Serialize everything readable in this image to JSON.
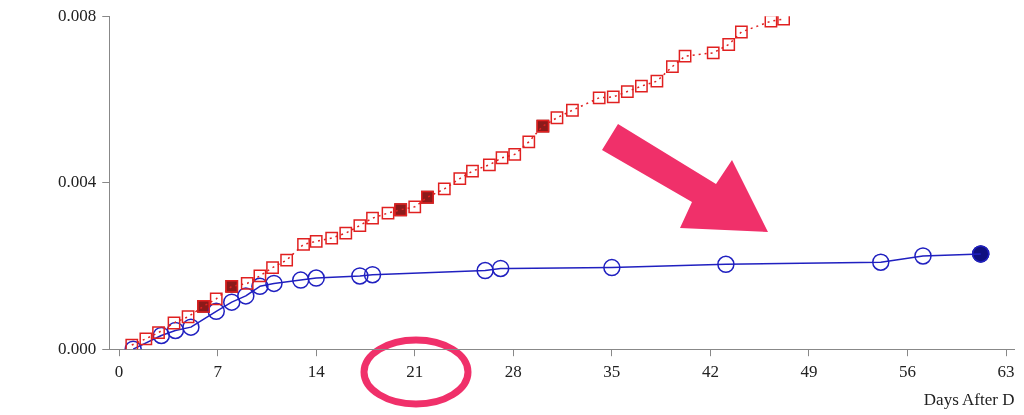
{
  "chart_data": {
    "type": "line",
    "xlabel": "Days After D",
    "xlim": [
      -0.7,
      63.6
    ],
    "xticks": [
      0,
      7,
      14,
      21,
      28,
      35,
      42,
      49,
      56,
      63
    ],
    "ylim": [
      0,
      0.008
    ],
    "yticks": [
      {
        "value": 0,
        "label": "0.000"
      },
      {
        "value": 0.004,
        "label": "0.004"
      },
      {
        "value": 0.008,
        "label": "0.008"
      }
    ],
    "grid": false,
    "legend": false,
    "series": [
      {
        "color": "#e02020",
        "marker": "square",
        "line_style": "dotted",
        "x": [
          0.9,
          1.9,
          2.8,
          3.9,
          4.9,
          6.0,
          6.9,
          8.0,
          9.1,
          10.0,
          10.9,
          11.9,
          13.1,
          14.0,
          15.1,
          16.1,
          17.1,
          18.0,
          19.1,
          20.0,
          21.0,
          21.9,
          23.1,
          24.2,
          25.1,
          26.3,
          27.2,
          28.1,
          29.1,
          30.1,
          31.1,
          32.2,
          34.1,
          35.1,
          36.1,
          37.1,
          38.2,
          39.3,
          40.2,
          42.2,
          43.3,
          44.2,
          46.3,
          47.2
        ],
        "values": [
          0.0001,
          0.00025,
          0.0004,
          0.00063,
          0.00078,
          0.00103,
          0.00121,
          0.00151,
          0.00158,
          0.00176,
          0.00196,
          0.00214,
          0.00252,
          0.00259,
          0.00267,
          0.00279,
          0.00297,
          0.00315,
          0.00327,
          0.00335,
          0.00342,
          0.00365,
          0.00385,
          0.0041,
          0.00428,
          0.00443,
          0.0046,
          0.00468,
          0.00498,
          0.00536,
          0.00556,
          0.00574,
          0.00604,
          0.00606,
          0.00619,
          0.00632,
          0.00644,
          0.00679,
          0.00704,
          0.00712,
          0.00732,
          0.00762,
          0.00788,
          0.00793
        ]
      },
      {
        "color": "#2020c0",
        "marker": "circle",
        "line_style": "solid",
        "x": [
          1.0,
          3.0,
          4.0,
          5.1,
          6.9,
          8.0,
          9.0,
          10.0,
          11.0,
          12.9,
          14.0,
          17.1,
          18.0,
          26.0,
          27.1,
          35.0,
          43.1,
          54.1,
          57.1,
          61.2
        ],
        "values": [
          0,
          0.00033,
          0.00045,
          0.00053,
          0.00091,
          0.00113,
          0.00128,
          0.00151,
          0.00158,
          0.00166,
          0.00171,
          0.00176,
          0.00179,
          0.00189,
          0.00194,
          0.00196,
          0.00204,
          0.00209,
          0.00224,
          0.00229
        ]
      },
      {
        "type": "scatter",
        "color": "#8b1a1a",
        "marker": "square",
        "x": [
          6.0,
          8.0,
          20.0,
          21.9,
          30.1
        ],
        "values": [
          0.00103,
          0.00151,
          0.00335,
          0.00365,
          0.00536
        ]
      },
      {
        "type": "scatter",
        "color": "#101080",
        "marker": "circle",
        "x": [
          61.2
        ],
        "values": [
          0.00229
        ]
      }
    ]
  }
}
